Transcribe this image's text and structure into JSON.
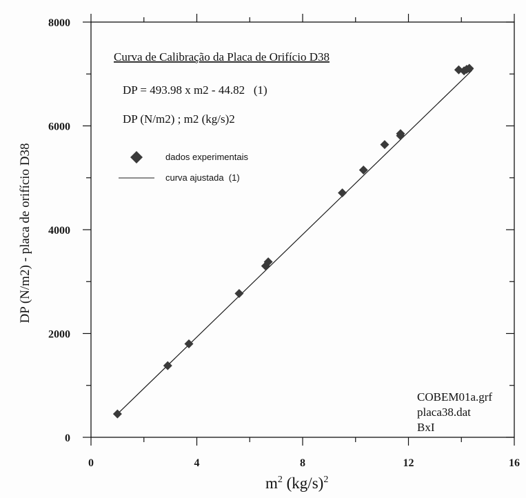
{
  "chart_data": {
    "type": "scatter",
    "title": "Curva de Calibração da Placa de Orifício D38",
    "equation": "DP = 493.98 x m2 - 44.82   (1)",
    "units": "DP (N/m2) ; m2 (kg/s)2",
    "xlabel_base": "m",
    "xlabel_sup": "2",
    "xlabel_rest": " (kg/s)",
    "xlabel_sup2": "2",
    "ylabel": "DP (N/m2) - placa de orifício D38",
    "xlim": [
      0,
      16
    ],
    "ylim": [
      0,
      8000
    ],
    "x_ticks": [
      0,
      4,
      8,
      12,
      16
    ],
    "y_ticks": [
      0,
      2000,
      4000,
      6000,
      8000
    ],
    "x_tick_labels": [
      "0",
      "4",
      "8",
      "12",
      "16"
    ],
    "y_tick_labels": [
      "0",
      "2000",
      "4000",
      "6000",
      "8000"
    ],
    "grid": false,
    "legend_placement": "top-left",
    "series": [
      {
        "name": "dados experimentais",
        "type": "scatter",
        "marker": "diamond",
        "x": [
          1.0,
          2.9,
          3.7,
          5.6,
          6.6,
          6.7,
          9.5,
          10.3,
          11.1,
          11.7,
          11.7,
          13.9,
          14.1,
          14.2,
          14.3,
          14.3
        ],
        "y": [
          450,
          1380,
          1800,
          2770,
          3300,
          3380,
          4710,
          5150,
          5640,
          5810,
          5850,
          7080,
          7060,
          7090,
          7100,
          7110
        ]
      },
      {
        "name": "curva ajustada  (1)",
        "type": "line",
        "slope": 493.98,
        "intercept": -44.82,
        "x_range": [
          1.0,
          14.4
        ]
      }
    ],
    "file_labels": [
      "COBEM01a.grf",
      "placa38.dat",
      "BxI"
    ],
    "colors": {
      "marker": "#3a3a3a",
      "line": "#1a1a1a",
      "axis": "#111111"
    }
  }
}
